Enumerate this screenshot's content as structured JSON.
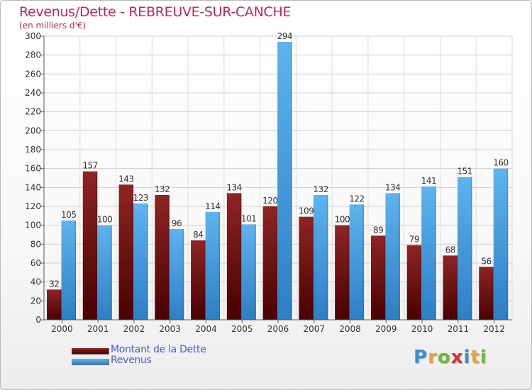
{
  "title": "Revenus/Dette - REBREUVE-SUR-CANCHE",
  "subtitle": "(en milliers d'€)",
  "logo": "Proxiti",
  "colors": {
    "dette": "#7a1515",
    "revenus": "#4aa3e4",
    "title": "#c2265b",
    "legend_text": "#4a5cd6"
  },
  "chart_data": {
    "type": "bar",
    "categories": [
      "2000",
      "2001",
      "2002",
      "2003",
      "2004",
      "2005",
      "2006",
      "2007",
      "2008",
      "2009",
      "2010",
      "2011",
      "2012"
    ],
    "series": [
      {
        "name": "Montant de la Dette",
        "values": [
          32,
          157,
          143,
          132,
          84,
          134,
          120,
          109,
          100,
          89,
          79,
          68,
          56
        ]
      },
      {
        "name": "Revenus",
        "values": [
          105,
          100,
          123,
          96,
          114,
          101,
          294,
          132,
          122,
          134,
          141,
          151,
          160
        ]
      }
    ],
    "ylim": [
      0,
      300
    ],
    "yticks": [
      0,
      20,
      40,
      60,
      80,
      100,
      120,
      140,
      160,
      180,
      200,
      220,
      240,
      260,
      280,
      300
    ],
    "grid": true,
    "legend": "bottom-left"
  }
}
